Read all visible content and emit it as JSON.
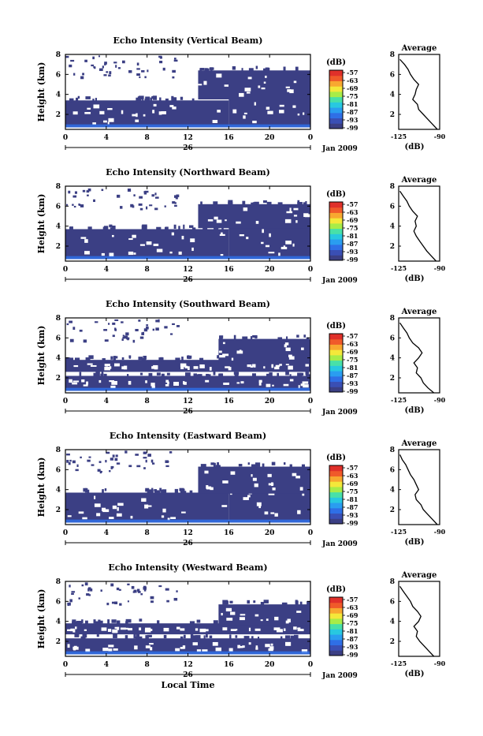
{
  "colors": {
    "background": "#ffffff",
    "echo_fill": "#3b3f84",
    "surface_blue": "#2f6fe6",
    "colorbar": [
      "#3b3f84",
      "#3a4fb4",
      "#2f6fe6",
      "#2a9df0",
      "#28c8e0",
      "#48e0a8",
      "#a8ec48",
      "#f4e83a",
      "#f8a830",
      "#f05a2a",
      "#e0302a"
    ]
  },
  "common": {
    "x_ticks": [
      "0",
      "4",
      "8",
      "12",
      "16",
      "20",
      "0"
    ],
    "date_tick": "26",
    "date_label": "Jan 2009",
    "y_ticks": [
      "2",
      "4",
      "6",
      "8"
    ],
    "ylabel": "Height (km)",
    "colorbar_unit": "(dB)",
    "colorbar_ticks": [
      "-57",
      "-63",
      "-69",
      "-75",
      "-81",
      "-87",
      "-93",
      "-99"
    ],
    "avg_title": "Average",
    "avg_xticks_top": [
      "-125",
      "-90"
    ],
    "avg_xticks_bottom": [
      "-125",
      "-90"
    ],
    "avg_xlabel": "(dB)",
    "xlabel": "Local Time"
  },
  "chart_data": [
    {
      "type": "heatmap",
      "title": "Echo Intensity (Vertical Beam)",
      "xlabel": "",
      "ylabel": "Height (km)",
      "xlim_hours": [
        0,
        24
      ],
      "ylim_km": [
        0.5,
        8
      ],
      "colorbar_range_db": [
        -99,
        -57
      ],
      "layers": [
        {
          "t": [
            0,
            16
          ],
          "h": [
            0.7,
            3.4
          ]
        },
        {
          "t": [
            16,
            24
          ],
          "h": [
            0.7,
            3.6
          ]
        },
        {
          "t": [
            13,
            24
          ],
          "h": [
            3.5,
            6.4
          ]
        },
        {
          "t": [
            0,
            24
          ],
          "h": [
            0.7,
            1.0
          ],
          "surface": true
        }
      ],
      "average_profile": {
        "x_db": [
          -92,
          -96,
          -100,
          -104,
          -108,
          -109,
          -113,
          -111,
          -110,
          -108,
          -112,
          -115,
          -117,
          -120,
          -124
        ],
        "y_km": [
          0.5,
          1.0,
          1.5,
          2.0,
          2.5,
          3.0,
          3.5,
          4.0,
          4.5,
          5.0,
          5.5,
          6.0,
          6.5,
          7.0,
          7.5
        ]
      }
    },
    {
      "type": "heatmap",
      "title": "Echo Intensity (Northward Beam)",
      "xlabel": "",
      "ylabel": "Height (km)",
      "xlim_hours": [
        0,
        24
      ],
      "ylim_km": [
        0.5,
        8
      ],
      "colorbar_range_db": [
        -99,
        -57
      ],
      "layers": [
        {
          "t": [
            0,
            16
          ],
          "h": [
            0.7,
            3.7
          ]
        },
        {
          "t": [
            16,
            24
          ],
          "h": [
            0.7,
            4.2
          ]
        },
        {
          "t": [
            13,
            24
          ],
          "h": [
            3.8,
            6.2
          ]
        },
        {
          "t": [
            0,
            24
          ],
          "h": [
            0.7,
            1.0
          ],
          "surface": true
        }
      ],
      "average_profile": {
        "x_db": [
          -93,
          -97,
          -101,
          -104,
          -107,
          -110,
          -112,
          -110,
          -111,
          -109,
          -113,
          -116,
          -118,
          -121,
          -124
        ],
        "y_km": [
          0.5,
          1.0,
          1.5,
          2.0,
          2.5,
          3.0,
          3.5,
          4.0,
          4.5,
          5.0,
          5.5,
          6.0,
          6.5,
          7.0,
          7.5
        ]
      }
    },
    {
      "type": "heatmap",
      "title": "Echo Intensity (Southward Beam)",
      "xlabel": "",
      "ylabel": "Height (km)",
      "xlim_hours": [
        0,
        24
      ],
      "ylim_km": [
        0.5,
        8
      ],
      "colorbar_range_db": [
        -99,
        -57
      ],
      "layers": [
        {
          "t": [
            0,
            24
          ],
          "h": [
            0.7,
            2.2
          ]
        },
        {
          "t": [
            0,
            24
          ],
          "h": [
            2.6,
            3.8
          ]
        },
        {
          "t": [
            15,
            24
          ],
          "h": [
            3.4,
            5.9
          ]
        },
        {
          "t": [
            0,
            24
          ],
          "h": [
            0.7,
            1.0
          ],
          "surface": true
        }
      ],
      "average_profile": {
        "x_db": [
          -95,
          -100,
          -104,
          -106,
          -110,
          -109,
          -112,
          -108,
          -105,
          -108,
          -113,
          -116,
          -118,
          -121,
          -124
        ],
        "y_km": [
          0.5,
          1.0,
          1.5,
          2.0,
          2.5,
          3.0,
          3.5,
          4.0,
          4.5,
          5.0,
          5.5,
          6.0,
          6.5,
          7.0,
          7.5
        ]
      }
    },
    {
      "type": "heatmap",
      "title": "Echo Intensity (Eastward Beam)",
      "xlabel": "",
      "ylabel": "Height (km)",
      "xlim_hours": [
        0,
        24
      ],
      "ylim_km": [
        0.5,
        8
      ],
      "colorbar_range_db": [
        -99,
        -57
      ],
      "layers": [
        {
          "t": [
            0,
            16
          ],
          "h": [
            0.7,
            3.7
          ]
        },
        {
          "t": [
            16,
            24
          ],
          "h": [
            0.7,
            4.4
          ]
        },
        {
          "t": [
            13,
            24
          ],
          "h": [
            3.6,
            6.3
          ]
        },
        {
          "t": [
            0,
            24
          ],
          "h": [
            0.7,
            1.0
          ],
          "surface": true
        }
      ],
      "average_profile": {
        "x_db": [
          -92,
          -96,
          -100,
          -104,
          -106,
          -110,
          -111,
          -108,
          -110,
          -112,
          -115,
          -117,
          -119,
          -122,
          -124
        ],
        "y_km": [
          0.5,
          1.0,
          1.5,
          2.0,
          2.5,
          3.0,
          3.5,
          4.0,
          4.5,
          5.0,
          5.5,
          6.0,
          6.5,
          7.0,
          7.5
        ]
      }
    },
    {
      "type": "heatmap",
      "title": "Echo Intensity (Westward Beam)",
      "xlabel": "Local Time",
      "ylabel": "Height (km)",
      "xlim_hours": [
        0,
        24
      ],
      "ylim_km": [
        0.5,
        8
      ],
      "colorbar_range_db": [
        -99,
        -57
      ],
      "layers": [
        {
          "t": [
            0,
            24
          ],
          "h": [
            0.7,
            2.3
          ]
        },
        {
          "t": [
            0,
            24
          ],
          "h": [
            2.7,
            3.8
          ]
        },
        {
          "t": [
            15,
            24
          ],
          "h": [
            3.6,
            5.7
          ]
        },
        {
          "t": [
            0,
            24
          ],
          "h": [
            0.7,
            1.0
          ],
          "surface": true
        }
      ],
      "average_profile": {
        "x_db": [
          -95,
          -99,
          -103,
          -107,
          -110,
          -109,
          -112,
          -108,
          -106,
          -109,
          -113,
          -115,
          -118,
          -121,
          -124
        ],
        "y_km": [
          0.5,
          1.0,
          1.5,
          2.0,
          2.5,
          3.0,
          3.5,
          4.0,
          4.5,
          5.0,
          5.5,
          6.0,
          6.5,
          7.0,
          7.5
        ]
      }
    }
  ]
}
